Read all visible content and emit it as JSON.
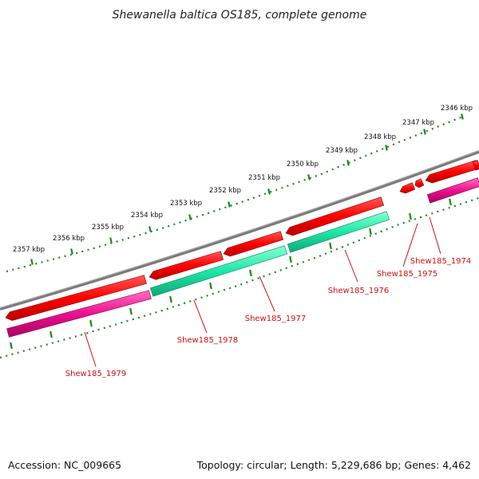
{
  "title": "Shewanella baltica OS185, complete genome",
  "footer": {
    "accession": "Accession: NC_009665",
    "summary": "Topology: circular; Length: 5,229,686 bp; Genes: 4,462"
  },
  "ruler": {
    "labels": [
      "2346 kbp",
      "2347 kbp",
      "2348 kbp",
      "2349 kbp",
      "2350 kbp",
      "2351 kbp",
      "2352 kbp",
      "2353 kbp",
      "2354 kbp",
      "2355 kbp",
      "2356 kbp",
      "2357 kbp"
    ]
  },
  "genes": [
    {
      "label": "Shew185_1974"
    },
    {
      "label": "Shew185_1975"
    },
    {
      "label": "Shew185_1976"
    },
    {
      "label": "Shew185_1977"
    },
    {
      "label": "Shew185_1978"
    },
    {
      "label": "Shew185_1979"
    }
  ],
  "colors": {
    "cds": "#ff0000",
    "gene_teal": "#1fe6a8",
    "gene_pink": "#ee1090",
    "backbone": "#808080",
    "ruler": "#1a8a1a",
    "label": "#cc1111"
  }
}
